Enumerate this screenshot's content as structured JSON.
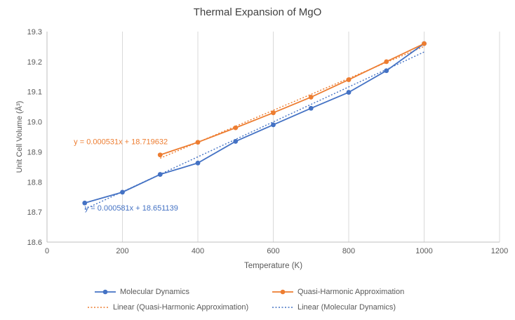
{
  "chart": {
    "title": "Thermal Expansion of MgO",
    "xlabel": "Temperature (K)",
    "ylabel": "Unit Cell Volume (Å³)"
  },
  "chart_data": {
    "type": "scatter",
    "title": "Thermal Expansion of MgO",
    "xlabel": "Temperature (K)",
    "ylabel": "Unit Cell Volume (Å³)",
    "xlim": [
      0,
      1200
    ],
    "ylim": [
      18.6,
      19.3
    ],
    "xticks": [
      0,
      200,
      400,
      600,
      800,
      1000,
      1200
    ],
    "yticks": [
      18.6,
      18.7,
      18.8,
      18.9,
      19.0,
      19.1,
      19.2,
      19.3
    ],
    "grid": "vertical-major",
    "grid_color": "#D9D9D9",
    "axis_color": "#BFBFBF",
    "tick_label_color": "#595959",
    "legend_position": "bottom",
    "series": [
      {
        "name": "Molecular Dynamics",
        "color": "#4472C4",
        "marker": "circle",
        "x": [
          100,
          200,
          300,
          400,
          500,
          600,
          700,
          800,
          900,
          1000
        ],
        "y": [
          18.73,
          18.766,
          18.825,
          18.863,
          18.935,
          18.99,
          19.045,
          19.098,
          19.17,
          19.26
        ]
      },
      {
        "name": "Quasi-Harmonic Approximation",
        "color": "#ED7D31",
        "marker": "circle",
        "x": [
          300,
          400,
          500,
          600,
          700,
          800,
          900,
          1000
        ],
        "y": [
          18.89,
          18.932,
          18.98,
          19.03,
          19.082,
          19.14,
          19.2,
          19.26
        ]
      }
    ],
    "trendlines": [
      {
        "name": "Linear (Quasi-Harmonic Approximation)",
        "color": "#ED7D31",
        "slope": 0.000531,
        "intercept": 18.719632,
        "equation": "y = 0.000531x + 18.719632",
        "x_range": [
          300,
          1000
        ],
        "label_x": 71,
        "label_y": 18.925
      },
      {
        "name": "Linear (Molecular Dynamics)",
        "color": "#4472C4",
        "slope": 0.000581,
        "intercept": 18.651139,
        "equation": "y = 0.000581x + 18.651139",
        "x_range": [
          100,
          1000
        ],
        "label_x": 100,
        "label_y": 18.705
      }
    ]
  },
  "legend": {
    "items": [
      {
        "label": "Molecular Dynamics",
        "color": "#4472C4",
        "style": "line-marker"
      },
      {
        "label": "Quasi-Harmonic Approximation",
        "color": "#ED7D31",
        "style": "line-marker"
      },
      {
        "label": "Linear (Quasi-Harmonic Approximation)",
        "color": "#ED7D31",
        "style": "dotted"
      },
      {
        "label": "Linear (Molecular Dynamics)",
        "color": "#4472C4",
        "style": "dotted"
      }
    ]
  }
}
